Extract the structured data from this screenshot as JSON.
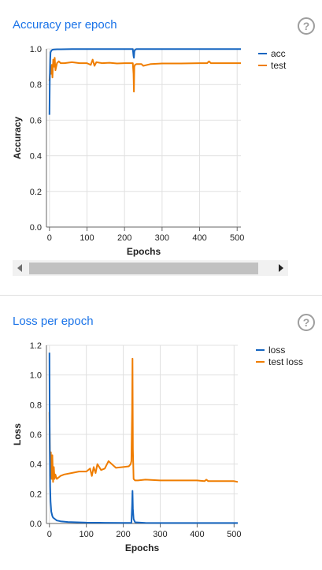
{
  "panels": [
    {
      "title": "Accuracy per epoch",
      "help_icon": "help-circle-icon",
      "chart_data": {
        "type": "line",
        "xlabel": "Epochs",
        "ylabel": "Accuracy",
        "xlim": [
          -8,
          510
        ],
        "ylim": [
          0.0,
          1.0
        ],
        "xticks": [
          "0",
          "100",
          "200",
          "300",
          "400",
          "500"
        ],
        "yticks": [
          "0.0",
          "0.2",
          "0.4",
          "0.6",
          "0.8",
          "1.0"
        ],
        "grid": true,
        "legend_position": "top-right",
        "series": [
          {
            "name": "acc",
            "color": "#1565c0",
            "x": [
              0,
              1,
              2,
              3,
              5,
              8,
              12,
              20,
              30,
              60,
              100,
              150,
              200,
              222,
              224,
              225,
              226,
              228,
              232,
              260,
              300,
              350,
              400,
              450,
              500,
              510
            ],
            "y": [
              0.63,
              0.85,
              0.94,
              0.98,
              0.99,
              0.995,
              0.997,
              0.998,
              0.998,
              0.999,
              0.999,
              0.999,
              0.999,
              0.999,
              0.96,
              0.95,
              0.985,
              0.995,
              0.999,
              0.999,
              0.999,
              0.999,
              0.999,
              0.999,
              0.999,
              0.999
            ]
          },
          {
            "name": "test",
            "color": "#ef7d00",
            "x": [
              0,
              2,
              4,
              6,
              8,
              10,
              12,
              14,
              16,
              20,
              25,
              30,
              40,
              60,
              80,
              100,
              110,
              115,
              120,
              125,
              140,
              160,
              180,
              200,
              215,
              222,
              224,
              225,
              226,
              228,
              232,
              245,
              250,
              270,
              300,
              350,
              400,
              420,
              425,
              430,
              450,
              500,
              510
            ],
            "y": [
              0.82,
              0.88,
              0.86,
              0.91,
              0.84,
              0.94,
              0.9,
              0.95,
              0.88,
              0.92,
              0.93,
              0.92,
              0.92,
              0.925,
              0.92,
              0.92,
              0.91,
              0.94,
              0.905,
              0.925,
              0.92,
              0.922,
              0.918,
              0.92,
              0.92,
              0.92,
              0.86,
              0.76,
              0.9,
              0.91,
              0.915,
              0.915,
              0.905,
              0.915,
              0.918,
              0.918,
              0.92,
              0.92,
              0.93,
              0.92,
              0.92,
              0.92,
              0.92
            ]
          }
        ]
      }
    },
    {
      "title": "Loss per epoch",
      "help_icon": "help-circle-icon",
      "chart_data": {
        "type": "line",
        "xlabel": "Epochs",
        "ylabel": "Loss",
        "xlim": [
          -8,
          510
        ],
        "ylim": [
          0.0,
          1.2
        ],
        "xticks": [
          "0",
          "100",
          "200",
          "300",
          "400",
          "500"
        ],
        "yticks": [
          "0.0",
          "0.2",
          "0.4",
          "0.6",
          "0.8",
          "1.0",
          "1.2"
        ],
        "grid": true,
        "legend_position": "top-right",
        "series": [
          {
            "name": "loss",
            "color": "#1565c0",
            "x": [
              0,
              1,
              2,
              3,
              5,
              8,
              10,
              15,
              20,
              30,
              50,
              100,
              150,
              200,
              222,
              224,
              225,
              226,
              228,
              232,
              260,
              300,
              400,
              500,
              510
            ],
            "y": [
              1.15,
              0.55,
              0.25,
              0.15,
              0.08,
              0.05,
              0.04,
              0.03,
              0.02,
              0.015,
              0.01,
              0.006,
              0.005,
              0.004,
              0.004,
              0.12,
              0.22,
              0.1,
              0.03,
              0.008,
              0.004,
              0.003,
              0.003,
              0.003,
              0.003
            ]
          },
          {
            "name": "test loss",
            "color": "#ef7d00",
            "x": [
              0,
              2,
              4,
              6,
              8,
              10,
              12,
              14,
              16,
              20,
              25,
              30,
              40,
              60,
              80,
              100,
              110,
              115,
              120,
              125,
              130,
              140,
              150,
              160,
              180,
              200,
              215,
              220,
              222,
              224,
              225,
              226,
              228,
              232,
              240,
              260,
              300,
              350,
              400,
              420,
              425,
              430,
              450,
              500,
              510
            ],
            "y": [
              0.75,
              0.32,
              0.48,
              0.3,
              0.46,
              0.28,
              0.38,
              0.3,
              0.33,
              0.3,
              0.31,
              0.32,
              0.33,
              0.34,
              0.35,
              0.35,
              0.37,
              0.32,
              0.38,
              0.34,
              0.4,
              0.36,
              0.37,
              0.42,
              0.375,
              0.38,
              0.385,
              0.4,
              0.42,
              0.75,
              1.11,
              0.5,
              0.3,
              0.29,
              0.29,
              0.295,
              0.29,
              0.29,
              0.29,
              0.285,
              0.295,
              0.285,
              0.285,
              0.285,
              0.28
            ]
          }
        ]
      }
    }
  ],
  "scrollbar": {
    "left_arrow_icon": "triangle-left-icon",
    "right_arrow_icon": "triangle-right-icon"
  }
}
